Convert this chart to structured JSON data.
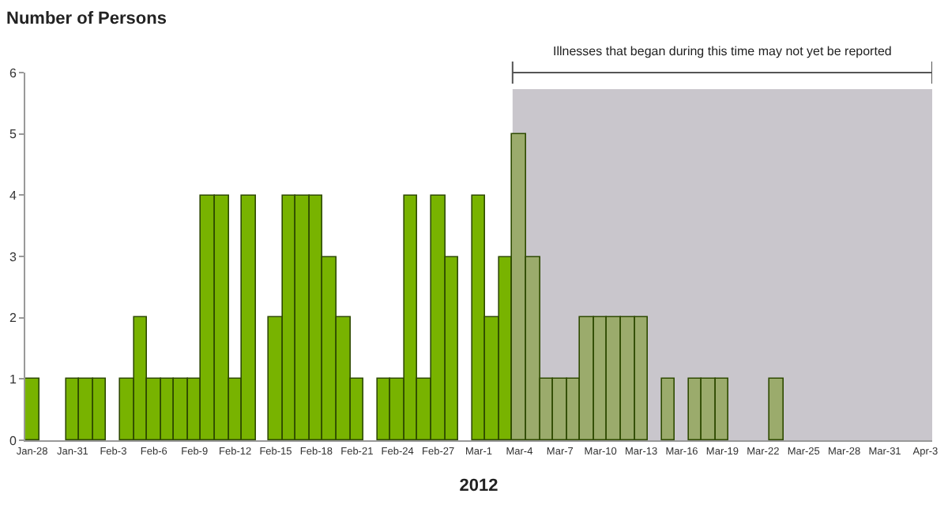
{
  "chart_data": {
    "type": "bar",
    "ylabel": "Number of Persons",
    "xlabel": "2012",
    "categories": [
      "Jan-28",
      null,
      null,
      "Jan-31",
      null,
      null,
      "Feb-3",
      null,
      null,
      "Feb-6",
      null,
      null,
      "Feb-9",
      null,
      null,
      "Feb-12",
      null,
      null,
      "Feb-15",
      null,
      null,
      "Feb-18",
      null,
      null,
      "Feb-21",
      null,
      null,
      "Feb-24",
      null,
      null,
      "Feb-27",
      null,
      null,
      "Mar-1",
      null,
      null,
      "Mar-4",
      null,
      null,
      "Mar-7",
      null,
      null,
      "Mar-10",
      null,
      null,
      "Mar-13",
      null,
      null,
      "Mar-16",
      null,
      null,
      "Mar-19",
      null,
      null,
      "Mar-22",
      null,
      null,
      "Mar-25",
      null,
      null,
      "Mar-28",
      null,
      null,
      "Mar-31",
      null,
      null,
      "Apr-3"
    ],
    "values": [
      1,
      0,
      0,
      1,
      1,
      1,
      0,
      1,
      2,
      1,
      1,
      1,
      1,
      4,
      4,
      1,
      4,
      0,
      2,
      4,
      4,
      4,
      3,
      2,
      1,
      0,
      1,
      1,
      4,
      1,
      4,
      3,
      0,
      4,
      2,
      3,
      5,
      3,
      1,
      1,
      1,
      2,
      2,
      2,
      2,
      2,
      0,
      1,
      0,
      1,
      1,
      1,
      0,
      0,
      0,
      1,
      0,
      0,
      0,
      0,
      0,
      0,
      0,
      0,
      0,
      0,
      0
    ],
    "colors": [
      "#78b300",
      "#78b300",
      "#78b300",
      "#78b300",
      "#78b300",
      "#78b300",
      "#78b300",
      "#78b300",
      "#78b300",
      "#78b300",
      "#78b300",
      "#78b300",
      "#78b300",
      "#78b300",
      "#78b300",
      "#78b300",
      "#78b300",
      "#78b300",
      "#78b300",
      "#78b300",
      "#78b300",
      "#78b300",
      "#78b300",
      "#78b300",
      "#78b300",
      "#78b300",
      "#78b300",
      "#78b300",
      "#78b300",
      "#78b300",
      "#78b300",
      "#78b300",
      "#78b300",
      "#78b300",
      "#78b300",
      "#78b300",
      "#9bab6c",
      "#9bab6c",
      "#9bab6c",
      "#9bab6c",
      "#9bab6c",
      "#9bab6c",
      "#9bab6c",
      "#9bab6c",
      "#9bab6c",
      "#9bab6c",
      "#9bab6c",
      "#9bab6c",
      "#9bab6c",
      "#9bab6c",
      "#9bab6c",
      "#9bab6c",
      "#9bab6c",
      "#9bab6c",
      "#9bab6c",
      "#9bab6c",
      "#9bab6c",
      "#9bab6c",
      "#9bab6c",
      "#9bab6c",
      "#9bab6c",
      "#9bab6c",
      "#9bab6c",
      "#9bab6c",
      "#9bab6c",
      "#9bab6c",
      "#9bab6c"
    ],
    "ylim": [
      0,
      6
    ],
    "yticks": [
      0,
      1,
      2,
      3,
      4,
      5,
      6
    ],
    "grid": false,
    "bands": [
      {
        "axis": "x",
        "from": "Mar-4",
        "to": "Apr-3",
        "label": "Illnesses that began during this time may not yet be reported",
        "color": "#c9c6cc"
      }
    ]
  }
}
